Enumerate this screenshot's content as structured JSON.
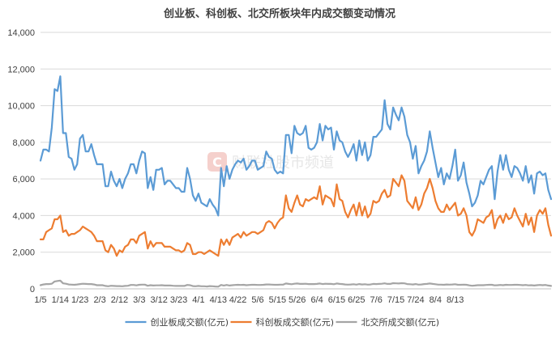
{
  "chart_data": {
    "type": "line",
    "title": "创业板、科创板、北交所板块年内成交额变动情况",
    "watermark": "财联社股市频道",
    "ylim": [
      0,
      14000
    ],
    "y_ticks": [
      "0",
      "2,000",
      "4,000",
      "6,000",
      "8,000",
      "10,000",
      "12,000",
      "14,000"
    ],
    "y_tick_values": [
      0,
      2000,
      4000,
      6000,
      8000,
      10000,
      12000,
      14000
    ],
    "x_tick_labels": [
      "1/5",
      "1/14",
      "1/23",
      "2/3",
      "2/12",
      "3/3",
      "3/12",
      "3/23",
      "4/1",
      "4/13",
      "4/22",
      "5/6",
      "5/15",
      "5/26",
      "6/4",
      "6/15",
      "6/25",
      "7/6",
      "7/15",
      "7/24",
      "8/4",
      "8/13"
    ],
    "x_tick_index": [
      0,
      7,
      14,
      21,
      28,
      35,
      42,
      49,
      56,
      63,
      70,
      77,
      84,
      91,
      98,
      105,
      112,
      119,
      126,
      133,
      140,
      147
    ],
    "grid": true,
    "legend_position": "bottom",
    "series": [
      {
        "name": "创业板成交额(亿元)",
        "color": "#5b9bd5",
        "values": [
          7000,
          7600,
          7600,
          7500,
          8800,
          10900,
          10800,
          11600,
          8500,
          8500,
          7200,
          7100,
          6500,
          6800,
          8200,
          8400,
          7500,
          7500,
          7900,
          7300,
          6800,
          6800,
          6800,
          5600,
          5600,
          6400,
          5900,
          5600,
          6000,
          5500,
          6000,
          6300,
          6800,
          6800,
          6300,
          7000,
          7500,
          7400,
          5500,
          6100,
          5400,
          6500,
          6500,
          6600,
          5700,
          5900,
          5900,
          5700,
          5500,
          5500,
          5300,
          5300,
          6600,
          6000,
          5100,
          4800,
          5200,
          4700,
          4600,
          4500,
          4900,
          4600,
          4400,
          4000,
          6600,
          5600,
          6700,
          6000,
          6500,
          6800,
          7000,
          6900,
          7100,
          6500,
          6700,
          7000,
          7000,
          6500,
          6600,
          6700,
          7500,
          7200,
          7100,
          6500,
          6300,
          6400,
          6300,
          8400,
          8400,
          7400,
          8900,
          8500,
          8400,
          8500,
          8900,
          7700,
          7600,
          7700,
          8000,
          9000,
          8100,
          8900,
          8700,
          8800,
          7600,
          8600,
          8100,
          8000,
          7500,
          7200,
          7500,
          7900,
          7000,
          8100,
          7300,
          8000,
          7000,
          7300,
          8300,
          8300,
          8500,
          8700,
          10300,
          9000,
          8700,
          9900,
          9500,
          9200,
          9900,
          9400,
          8400,
          8000,
          7100,
          7800,
          6300,
          6700,
          7000,
          7500,
          8600,
          7700,
          6900,
          6100,
          6600,
          5700,
          6300,
          6000,
          6700,
          7600,
          5900,
          6200,
          6900,
          5800,
          5200,
          4500,
          4700,
          5100,
          5900,
          5700,
          6100,
          6500,
          6700,
          4900,
          6400,
          7300,
          6500,
          7300,
          6500,
          6100,
          6700,
          6600,
          6300,
          5900,
          6700,
          5800,
          6200,
          5200,
          6300,
          6400,
          6200,
          6300,
          5400,
          4900
        ]
      },
      {
        "name": "科创板成交额(亿元)",
        "color": "#ed7d31",
        "values": [
          2700,
          2700,
          3100,
          3200,
          3300,
          3800,
          3800,
          4000,
          3100,
          3200,
          2900,
          3000,
          3000,
          3100,
          3200,
          3400,
          3300,
          3200,
          3100,
          2900,
          2600,
          2600,
          2600,
          2100,
          2000,
          2400,
          2200,
          1800,
          2100,
          2000,
          2300,
          2400,
          2700,
          2700,
          2500,
          2900,
          3000,
          3100,
          2200,
          2600,
          2300,
          2500,
          2500,
          2500,
          2300,
          2300,
          2300,
          2200,
          2100,
          2100,
          2000,
          2100,
          2500,
          2400,
          1900,
          1900,
          2000,
          2000,
          1900,
          2000,
          2100,
          2000,
          1900,
          1800,
          2700,
          2400,
          2700,
          2400,
          2800,
          2900,
          3000,
          2800,
          3100,
          2900,
          3000,
          3100,
          3100,
          3000,
          3100,
          3200,
          3600,
          3700,
          3600,
          3300,
          3600,
          3800,
          3900,
          5100,
          4400,
          4200,
          4700,
          5100,
          4600,
          4500,
          4900,
          4800,
          4900,
          5000,
          4900,
          5600,
          4600,
          5100,
          5000,
          4900,
          4500,
          5700,
          4900,
          4800,
          4200,
          3900,
          4300,
          4600,
          4000,
          4700,
          4000,
          4500,
          3900,
          4100,
          4800,
          4700,
          4800,
          5200,
          5400,
          5000,
          5100,
          6000,
          5800,
          5600,
          6200,
          5900,
          4800,
          4600,
          4400,
          5000,
          4300,
          4600,
          5200,
          5500,
          6000,
          5500,
          4800,
          4400,
          4200,
          4200,
          4600,
          4300,
          4500,
          4700,
          4000,
          4100,
          4400,
          4000,
          3100,
          2900,
          3200,
          3800,
          3700,
          3600,
          3900,
          4000,
          4300,
          3300,
          3800,
          4000,
          3600,
          4100,
          3800,
          3900,
          4400,
          4000,
          3700,
          3400,
          4100,
          3500,
          3900,
          3100,
          4000,
          4300,
          4100,
          4400,
          3500,
          2900
        ]
      },
      {
        "name": "北交所成交额(亿元)",
        "color": "#a5a5a5",
        "values": [
          200,
          240,
          260,
          260,
          280,
          400,
          430,
          450,
          300,
          280,
          240,
          230,
          220,
          240,
          260,
          280,
          270,
          260,
          260,
          240,
          200,
          200,
          200,
          160,
          140,
          170,
          160,
          150,
          150,
          140,
          160,
          170,
          210,
          210,
          190,
          220,
          230,
          230,
          170,
          200,
          180,
          190,
          190,
          200,
          180,
          180,
          180,
          170,
          160,
          160,
          160,
          160,
          210,
          200,
          150,
          140,
          160,
          140,
          140,
          130,
          150,
          140,
          130,
          120,
          210,
          180,
          210,
          180,
          200,
          210,
          220,
          210,
          220,
          200,
          210,
          220,
          220,
          210,
          210,
          220,
          240,
          240,
          230,
          220,
          220,
          230,
          230,
          290,
          270,
          250,
          280,
          290,
          270,
          270,
          280,
          260,
          260,
          260,
          270,
          290,
          260,
          280,
          270,
          270,
          250,
          290,
          270,
          260,
          240,
          230,
          240,
          250,
          230,
          260,
          240,
          250,
          230,
          240,
          270,
          260,
          270,
          280,
          300,
          270,
          270,
          310,
          300,
          290,
          310,
          300,
          260,
          250,
          240,
          260,
          230,
          240,
          260,
          270,
          290,
          270,
          250,
          230,
          230,
          220,
          240,
          230,
          240,
          250,
          220,
          220,
          230,
          220,
          190,
          170,
          180,
          200,
          200,
          200,
          210,
          220,
          220,
          190,
          200,
          210,
          200,
          220,
          210,
          210,
          220,
          220,
          210,
          200,
          210,
          190,
          200,
          180,
          200,
          210,
          200,
          210,
          180,
          160
        ]
      }
    ]
  }
}
